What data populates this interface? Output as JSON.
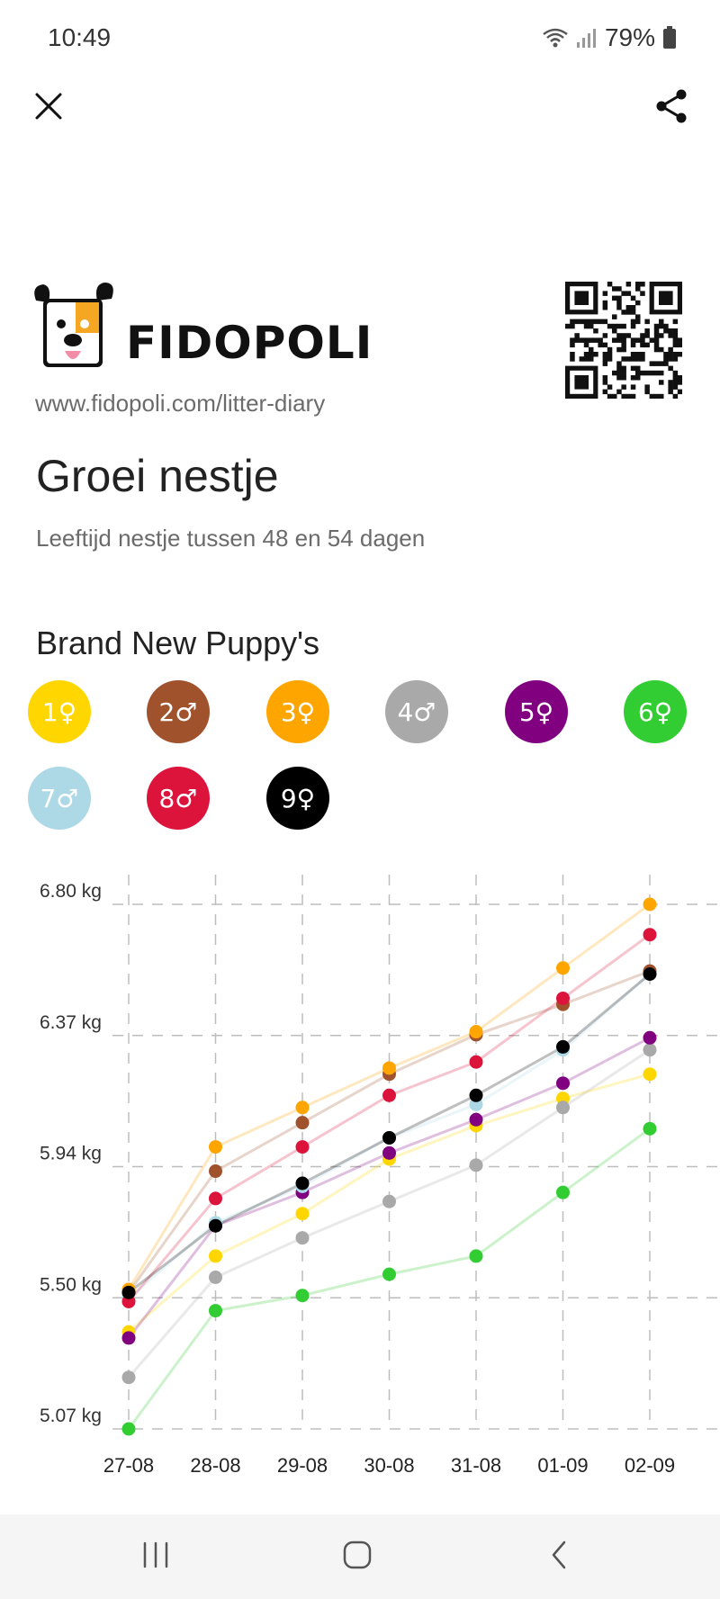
{
  "status_bar": {
    "time": "10:49",
    "battery": "79%",
    "icons": [
      "wifi-icon",
      "signal-icon",
      "battery-icon"
    ]
  },
  "top_bar": {
    "close_icon": "close-icon",
    "share_icon": "share-icon"
  },
  "brand": {
    "name": "FIDOPOLI",
    "url": "www.fidopoli.com/litter-diary",
    "logo_icon": "dog-logo-icon",
    "qr_icon": "qr-code-icon"
  },
  "page": {
    "title": "Groei nestje",
    "subtitle": "Leeftijd nestje tussen 48 en 54 dagen"
  },
  "litter": {
    "name": "Brand New Puppy's",
    "puppies": [
      {
        "label": "1♀",
        "color": "#FFD600"
      },
      {
        "label": "2♂",
        "color": "#A0522D"
      },
      {
        "label": "3♀",
        "color": "#FFA500"
      },
      {
        "label": "4♂",
        "color": "#A9A9A9"
      },
      {
        "label": "5♀",
        "color": "#800080"
      },
      {
        "label": "6♀",
        "color": "#32CD32"
      },
      {
        "label": "7♂",
        "color": "#ADD8E6"
      },
      {
        "label": "8♂",
        "color": "#DC143C"
      },
      {
        "label": "9♀",
        "color": "#000000"
      }
    ]
  },
  "chart_data": {
    "type": "line",
    "x": [
      "27-08",
      "28-08",
      "29-08",
      "30-08",
      "31-08",
      "01-09",
      "02-09"
    ],
    "yticks": [
      "6.80 kg",
      "6.37 kg",
      "5.94 kg",
      "5.50 kg",
      "5.07 kg"
    ],
    "ylim": [
      5.07,
      6.8
    ],
    "grid": true,
    "series": [
      {
        "name": "1♀",
        "color": "#FFD600",
        "values": [
          5.39,
          5.64,
          5.78,
          5.96,
          6.07,
          6.16,
          6.24
        ]
      },
      {
        "name": "2♂",
        "color": "#A0522D",
        "values": [
          5.52,
          5.92,
          6.08,
          6.24,
          6.37,
          6.47,
          6.58
        ]
      },
      {
        "name": "3♀",
        "color": "#FFA500",
        "values": [
          5.53,
          6.0,
          6.13,
          6.26,
          6.38,
          6.59,
          6.8
        ]
      },
      {
        "name": "4♂",
        "color": "#A9A9A9",
        "values": [
          5.24,
          5.57,
          5.7,
          5.82,
          5.94,
          6.13,
          6.32
        ]
      },
      {
        "name": "5♀",
        "color": "#800080",
        "values": [
          5.37,
          5.74,
          5.85,
          5.98,
          6.09,
          6.21,
          6.36
        ]
      },
      {
        "name": "6♀",
        "color": "#32CD32",
        "values": [
          5.07,
          5.46,
          5.51,
          5.58,
          5.64,
          5.85,
          6.06
        ]
      },
      {
        "name": "7♂",
        "color": "#ADD8E6",
        "values": [
          5.5,
          5.75,
          5.87,
          6.03,
          6.14,
          6.32,
          6.57
        ]
      },
      {
        "name": "8♂",
        "color": "#DC143C",
        "values": [
          5.49,
          5.83,
          6.0,
          6.17,
          6.28,
          6.49,
          6.7
        ]
      },
      {
        "name": "9♀",
        "color": "#000000",
        "values": [
          5.52,
          5.74,
          5.88,
          6.03,
          6.17,
          6.33,
          6.57
        ]
      }
    ]
  }
}
